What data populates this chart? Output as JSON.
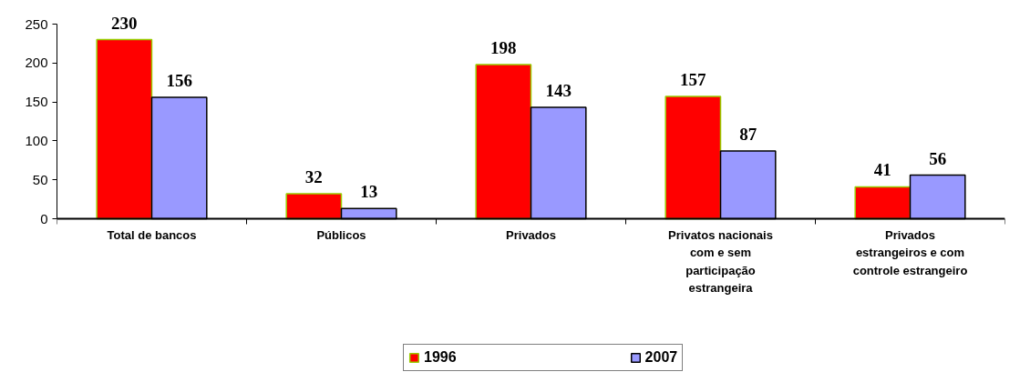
{
  "chart_data": {
    "type": "bar",
    "categories": [
      "Total de bancos",
      "Públicos",
      "Privados",
      "Privatos nacionais com e sem participação estrangeira",
      "Privados estrangeiros e com controle estrangeiro"
    ],
    "series": [
      {
        "name": "1996",
        "color": "#ff0000",
        "values": [
          230,
          32,
          198,
          157,
          41
        ]
      },
      {
        "name": "2007",
        "color": "#9999ff",
        "values": [
          156,
          13,
          143,
          87,
          56
        ]
      }
    ],
    "ylim": [
      0,
      250
    ],
    "yticks": [
      0,
      50,
      100,
      150,
      200,
      250
    ],
    "data_labels": true,
    "legend": "bottom",
    "grid": false
  }
}
